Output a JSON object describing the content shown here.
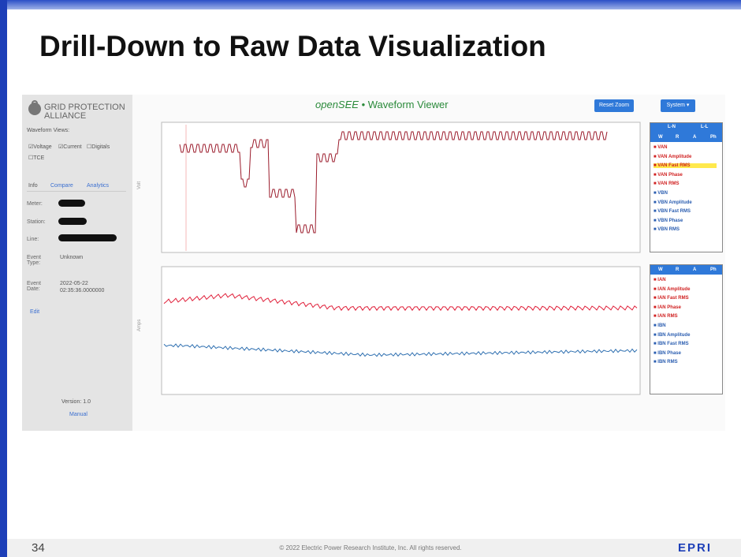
{
  "slide": {
    "title": "Drill-Down to Raw Data Visualization",
    "page_number": "34",
    "copyright": "© 2022 Electric Power Research Institute, Inc. All rights reserved.",
    "logo": "EPRI"
  },
  "sidebar": {
    "brand_line1": "GRID PROTECTION",
    "brand_line2": "ALLIANCE",
    "views_label": "Waveform Views:",
    "checkboxes": [
      "Voltage",
      "Current",
      "Digitals",
      "TCE"
    ],
    "tabs": [
      "Info",
      "Compare",
      "Analytics"
    ],
    "fields": [
      "Meter:",
      "Station:",
      "Line:",
      "Event Type:",
      "Event Date:"
    ],
    "event_type": "Unknown",
    "event_date": "2022-05-22",
    "event_time": "02:35:36.0000000",
    "edit": "Edit",
    "version": "Version: 1.0",
    "manual": "Manual"
  },
  "header": {
    "app": "openSEE",
    "separator": "•",
    "viewer": "Waveform Viewer",
    "reset": "Reset Zoom",
    "system": "System"
  },
  "axes": {
    "voltage": "Volt",
    "current": "Amps"
  },
  "voltage_legend": {
    "tabs": [
      "L-N",
      "L-L"
    ],
    "columns": [
      "W",
      "R",
      "A",
      "Ph"
    ],
    "items": [
      "VAN",
      "VAN Amplitude",
      "VAN Fast RMS",
      "VAN Phase",
      "VAN RMS",
      "VBN",
      "VBN Amplitude",
      "VBN Fast RMS",
      "VBN Phase",
      "VBN RMS"
    ]
  },
  "current_legend": {
    "columns": [
      "W",
      "R",
      "A",
      "Ph"
    ],
    "items": [
      "IAN",
      "IAN Amplitude",
      "IAN Fast RMS",
      "IAN Phase",
      "IAN RMS",
      "IBN",
      "IBN Amplitude",
      "IBN Fast RMS",
      "IBN Phase",
      "IBN RMS"
    ]
  }
}
